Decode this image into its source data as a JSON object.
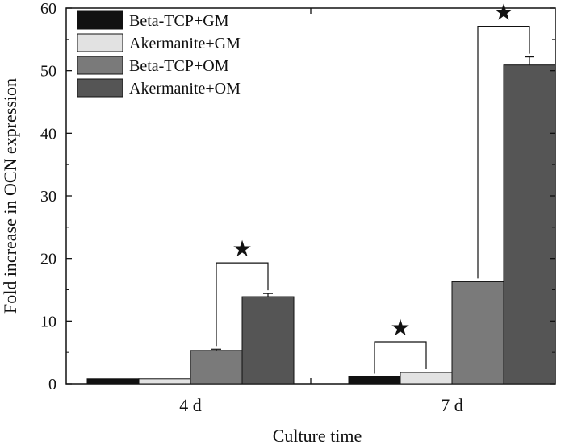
{
  "chart_data": {
    "type": "bar",
    "categories": [
      "4 d",
      "7 d"
    ],
    "series": [
      {
        "name": "Beta-TCP+GM",
        "color": "#111111",
        "values": [
          0.8,
          1.1
        ],
        "errors": [
          0,
          0
        ]
      },
      {
        "name": "Akermanite+GM",
        "color": "#e2e2e2",
        "values": [
          0.8,
          1.8
        ],
        "errors": [
          0,
          0
        ]
      },
      {
        "name": "Beta-TCP+OM",
        "color": "#7a7a7a",
        "values": [
          5.3,
          16.3
        ],
        "errors": [
          0.2,
          0
        ]
      },
      {
        "name": "Akermanite+OM",
        "color": "#555555",
        "values": [
          13.9,
          50.9
        ],
        "errors": [
          0.5,
          1.3
        ]
      }
    ],
    "xlabel": "Culture time",
    "ylabel": "Fold increase in OCN expression",
    "ylim": [
      0,
      60
    ],
    "yticks": [
      0,
      10,
      20,
      30,
      40,
      50,
      60
    ],
    "grid": false,
    "legend": "top-left",
    "significance_marker": "★",
    "significance": [
      {
        "category": "4 d",
        "between": [
          "Beta-TCP+OM",
          "Akermanite+OM"
        ]
      },
      {
        "category": "7 d",
        "between": [
          "Beta-TCP+GM",
          "Akermanite+GM"
        ]
      },
      {
        "category": "7 d",
        "between": [
          "Beta-TCP+OM",
          "Akermanite+OM"
        ]
      }
    ]
  }
}
